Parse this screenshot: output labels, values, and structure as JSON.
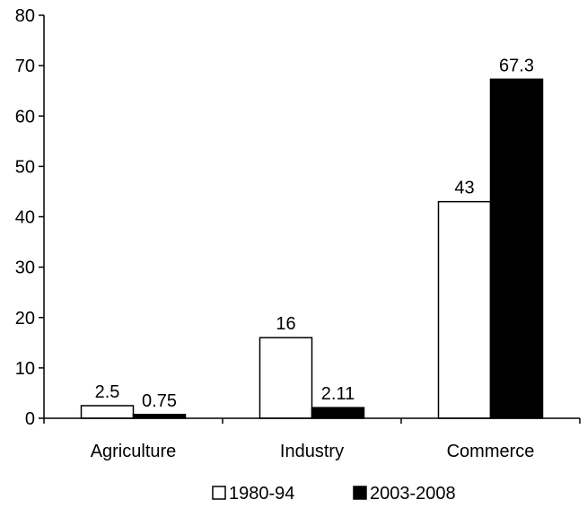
{
  "chart_data": {
    "type": "bar",
    "categories": [
      "Agriculture",
      "Industry",
      "Commerce"
    ],
    "series": [
      {
        "name": "1980-94",
        "values": [
          2.5,
          16,
          43
        ],
        "labels": [
          "2.5",
          "16",
          "43"
        ],
        "fill": "#ffffff",
        "stroke": "#000000"
      },
      {
        "name": "2003-2008",
        "values": [
          0.75,
          2.11,
          67.3
        ],
        "labels": [
          "0.75",
          "2.11",
          "67.3"
        ],
        "fill": "#000000",
        "stroke": "#000000"
      }
    ],
    "ylim": [
      0,
      80
    ],
    "yticks": [
      0,
      10,
      20,
      30,
      40,
      50,
      60,
      70,
      80
    ],
    "grid": false,
    "legend_position": "bottom",
    "title": "",
    "xlabel": "",
    "ylabel": ""
  }
}
